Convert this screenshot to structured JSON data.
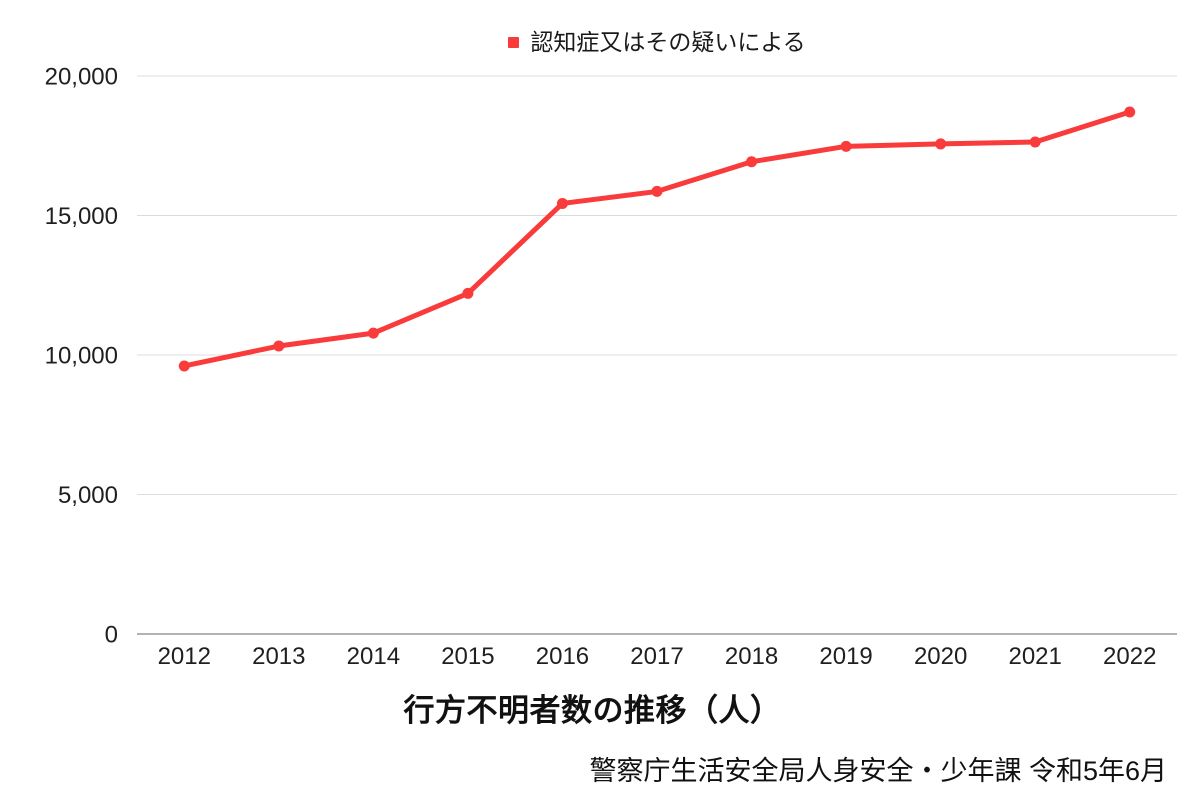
{
  "chart_data": {
    "type": "line",
    "title": "行方不明者数の推移（人）",
    "source": "警察庁生活安全局人身安全・少年課 令和5年6月",
    "legend": "認知症又はその疑いによる",
    "legend_position": "top",
    "grid": "horizontal",
    "categories": [
      "2012",
      "2013",
      "2014",
      "2015",
      "2016",
      "2017",
      "2018",
      "2019",
      "2020",
      "2021",
      "2022"
    ],
    "series": [
      {
        "name": "認知症又はその疑いによる",
        "values": [
          9607,
          10322,
          10783,
          12208,
          15432,
          15863,
          16927,
          17479,
          17565,
          17636,
          18709
        ]
      }
    ],
    "ylim": [
      0,
      20000
    ],
    "yticks": [
      {
        "value": 0,
        "label": "0"
      },
      {
        "value": 5000,
        "label": "5,000"
      },
      {
        "value": 10000,
        "label": "10,000"
      },
      {
        "value": 15000,
        "label": "15,000"
      },
      {
        "value": 20000,
        "label": "20,000"
      }
    ],
    "colors": {
      "line": "#f93b3b",
      "grid": "#dcdcdc",
      "axis": "#999999",
      "text": "#1f1f1f"
    }
  }
}
